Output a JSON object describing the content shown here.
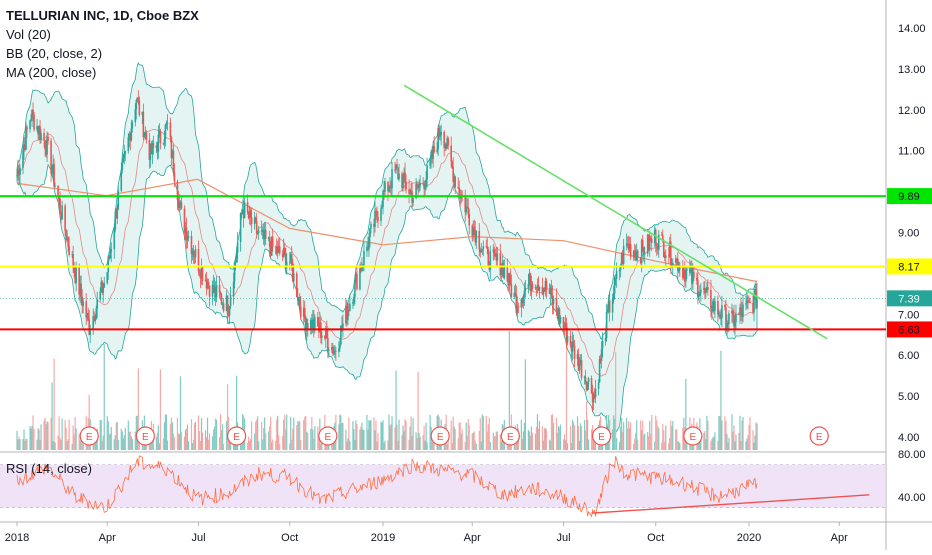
{
  "header": {
    "title": "TELLURIAN INC, 1D, Cboe BZX",
    "indicators": [
      "Vol (20)",
      "BB (20, close, 2)",
      "MA (200, close)"
    ]
  },
  "rsi_label": "RSI (14, close)",
  "colors": {
    "up": "#26a69a",
    "down": "#ef5350",
    "volume_up": "#80cbc4",
    "volume_down": "#f7a9a7",
    "bb_fill": "#b2dfdb",
    "bb_line": "#26a69a",
    "ma": "#f0906c",
    "support": "#ff0000",
    "resistance_yellow": "#ffff00",
    "resistance_green": "#00e600",
    "trendline": "#66e066",
    "rsi_line": "#ff7043",
    "rsi_band": "#ead7f5",
    "earnings": "#ef5350",
    "last_price_bg": "#26a69a"
  },
  "chart_data": [
    {
      "type": "line",
      "name": "price",
      "title": "TELLURIAN INC, 1D, Cboe BZX",
      "x_tick_labels": [
        "2018",
        "Apr",
        "Jul",
        "Oct",
        "2019",
        "Apr",
        "Jul",
        "Oct",
        "2020",
        "Apr"
      ],
      "x_tick_dates": [
        "2018-01-02",
        "2018-04-02",
        "2018-07-02",
        "2018-10-01",
        "2019-01-02",
        "2019-04-01",
        "2019-07-01",
        "2019-10-01",
        "2020-01-02",
        "2020-04-01"
      ],
      "y_ticks": [
        "4.00",
        "5.00",
        "6.00",
        "7.00",
        "8.00",
        "9.00",
        "10.00",
        "11.00",
        "12.00",
        "13.00",
        "14.00"
      ],
      "ylim": [
        3.8,
        14.4
      ],
      "close_series": {
        "x": [
          "2018-01-02",
          "2018-01-16",
          "2018-02-01",
          "2018-02-15",
          "2018-03-01",
          "2018-03-15",
          "2018-04-01",
          "2018-04-15",
          "2018-05-01",
          "2018-05-15",
          "2018-06-01",
          "2018-06-15",
          "2018-07-01",
          "2018-07-15",
          "2018-08-01",
          "2018-08-15",
          "2018-09-01",
          "2018-09-15",
          "2018-10-01",
          "2018-10-15",
          "2018-11-01",
          "2018-11-15",
          "2018-12-01",
          "2018-12-15",
          "2019-01-02",
          "2019-01-15",
          "2019-02-01",
          "2019-02-15",
          "2019-03-01",
          "2019-03-15",
          "2019-04-01",
          "2019-04-15",
          "2019-05-01",
          "2019-05-15",
          "2019-06-01",
          "2019-06-15",
          "2019-07-01",
          "2019-07-15",
          "2019-08-01",
          "2019-08-15",
          "2019-09-01",
          "2019-09-15",
          "2019-10-01",
          "2019-10-15",
          "2019-11-01",
          "2019-11-15",
          "2019-12-01",
          "2019-12-15",
          "2020-01-02",
          "2020-01-10"
        ],
        "y": [
          10.4,
          11.9,
          11.1,
          9.5,
          8.0,
          6.7,
          7.9,
          10.2,
          12.3,
          10.9,
          11.6,
          9.4,
          8.3,
          7.6,
          7.2,
          9.6,
          8.9,
          8.6,
          8.3,
          6.9,
          6.6,
          6.1,
          7.4,
          8.5,
          9.9,
          10.5,
          9.9,
          10.4,
          11.6,
          10.3,
          9.2,
          8.4,
          8.2,
          7.3,
          7.9,
          7.6,
          6.7,
          5.9,
          5.0,
          7.1,
          8.7,
          8.5,
          8.9,
          8.5,
          8.0,
          7.6,
          7.1,
          6.8,
          7.2,
          7.39
        ]
      },
      "ma200": {
        "x": [
          "2018-01-02",
          "2018-04-01",
          "2018-07-01",
          "2018-10-01",
          "2019-01-02",
          "2019-04-01",
          "2019-07-01",
          "2019-10-01",
          "2020-01-10"
        ],
        "y": [
          10.2,
          9.9,
          10.3,
          9.1,
          8.7,
          8.9,
          8.8,
          8.3,
          7.8
        ]
      },
      "horizontal_levels": [
        {
          "value": 9.89,
          "label": "9.89",
          "color": "#00e600"
        },
        {
          "value": 8.17,
          "label": "8.17",
          "color": "#ffff00"
        },
        {
          "value": 6.63,
          "label": "6.63",
          "color": "#ff0000"
        }
      ],
      "last_price": {
        "value": 7.39,
        "label": "7.39"
      },
      "trendline": {
        "from": {
          "x": "2019-01-23",
          "y": 12.6
        },
        "to": {
          "x": "2020-03-20",
          "y": 6.4
        }
      },
      "earnings_markers": [
        "2018-03-15",
        "2018-05-10",
        "2018-08-09",
        "2018-11-08",
        "2019-02-28",
        "2019-05-09",
        "2019-08-08",
        "2019-11-07",
        "2020-03-12"
      ],
      "earnings_label": "E"
    },
    {
      "type": "line",
      "name": "rsi",
      "title": "RSI (14, close)",
      "y_ticks": [
        "40.00",
        "80.00"
      ],
      "band": [
        30,
        70
      ],
      "ylim": [
        20,
        82
      ],
      "x": [
        "2018-01-02",
        "2018-02-01",
        "2018-03-01",
        "2018-04-01",
        "2018-05-01",
        "2018-06-01",
        "2018-07-01",
        "2018-08-01",
        "2018-09-01",
        "2018-10-01",
        "2018-11-01",
        "2018-12-01",
        "2019-01-02",
        "2019-02-01",
        "2019-03-01",
        "2019-04-01",
        "2019-05-01",
        "2019-06-01",
        "2019-07-01",
        "2019-08-01",
        "2019-08-20",
        "2019-09-01",
        "2019-10-01",
        "2019-11-01",
        "2019-12-01",
        "2020-01-10"
      ],
      "y": [
        55,
        68,
        40,
        30,
        72,
        66,
        38,
        44,
        62,
        58,
        36,
        46,
        56,
        70,
        65,
        60,
        42,
        48,
        40,
        24,
        75,
        62,
        58,
        52,
        40,
        52
      ],
      "trendline": {
        "from": {
          "x": "2019-07-29",
          "y": 25
        },
        "to": {
          "x": "2020-05-01",
          "y": 42
        }
      }
    }
  ]
}
